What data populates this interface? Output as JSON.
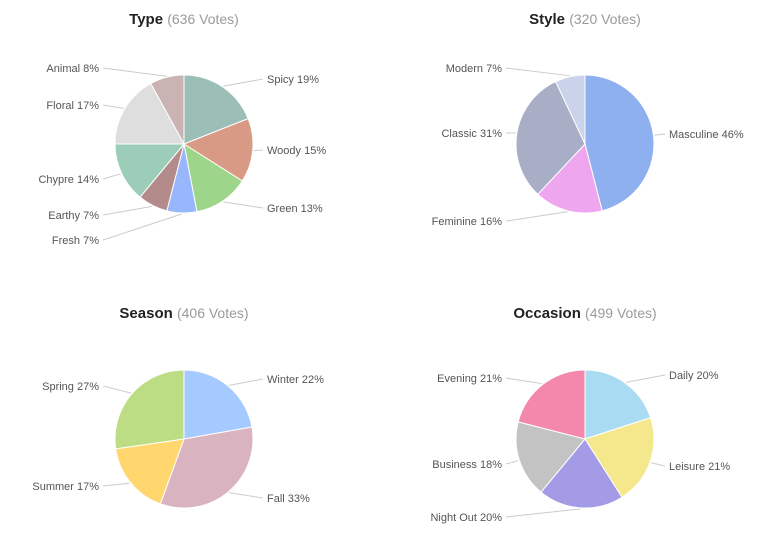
{
  "chart_data": [
    {
      "type": "pie",
      "title": "Type",
      "subtitle": "(636 Votes)",
      "slices": [
        {
          "label": "Spicy 19%",
          "value": 19,
          "color": "#9bbfb6"
        },
        {
          "label": "Woody 15%",
          "value": 15,
          "color": "#d99a85"
        },
        {
          "label": "Green 13%",
          "value": 13,
          "color": "#9dd58b"
        },
        {
          "label": "Fresh 7%",
          "value": 7,
          "color": "#97b6fb"
        },
        {
          "label": "Earthy 7%",
          "value": 7,
          "color": "#b48b8b"
        },
        {
          "label": "Chypre 14%",
          "value": 14,
          "color": "#9bcdb9"
        },
        {
          "label": "Floral 17%",
          "value": 17,
          "color": "#dedede"
        },
        {
          "label": "Animal 8%",
          "value": 8,
          "color": "#c9b3b3"
        }
      ]
    },
    {
      "type": "pie",
      "title": "Style",
      "subtitle": "(320 Votes)",
      "slices": [
        {
          "label": "Masculine 46%",
          "value": 46,
          "color": "#8fb0ef"
        },
        {
          "label": "Feminine 16%",
          "value": 16,
          "color": "#eea6ef"
        },
        {
          "label": "Classic 31%",
          "value": 31,
          "color": "#a9aec7"
        },
        {
          "label": "Modern 7%",
          "value": 7,
          "color": "#cad3e9"
        }
      ]
    },
    {
      "type": "pie",
      "title": "Season",
      "subtitle": "(406 Votes)",
      "slices": [
        {
          "label": "Winter 22%",
          "value": 22,
          "color": "#a5caff"
        },
        {
          "label": "Fall 33%",
          "value": 33,
          "color": "#d9b3bf"
        },
        {
          "label": "Summer 17%",
          "value": 17,
          "color": "#ffd76e"
        },
        {
          "label": "Spring 27%",
          "value": 27,
          "color": "#bcdd83"
        }
      ]
    },
    {
      "type": "pie",
      "title": "Occasion",
      "subtitle": "(499 Votes)",
      "slices": [
        {
          "label": "Daily 20%",
          "value": 20,
          "color": "#a9dcf2"
        },
        {
          "label": "Leisure 21%",
          "value": 21,
          "color": "#f5e88c"
        },
        {
          "label": "Night Out 20%",
          "value": 20,
          "color": "#a39be6"
        },
        {
          "label": "Business 18%",
          "value": 18,
          "color": "#c3c3c3"
        },
        {
          "label": "Evening 21%",
          "value": 21,
          "color": "#f487ac"
        }
      ]
    }
  ]
}
